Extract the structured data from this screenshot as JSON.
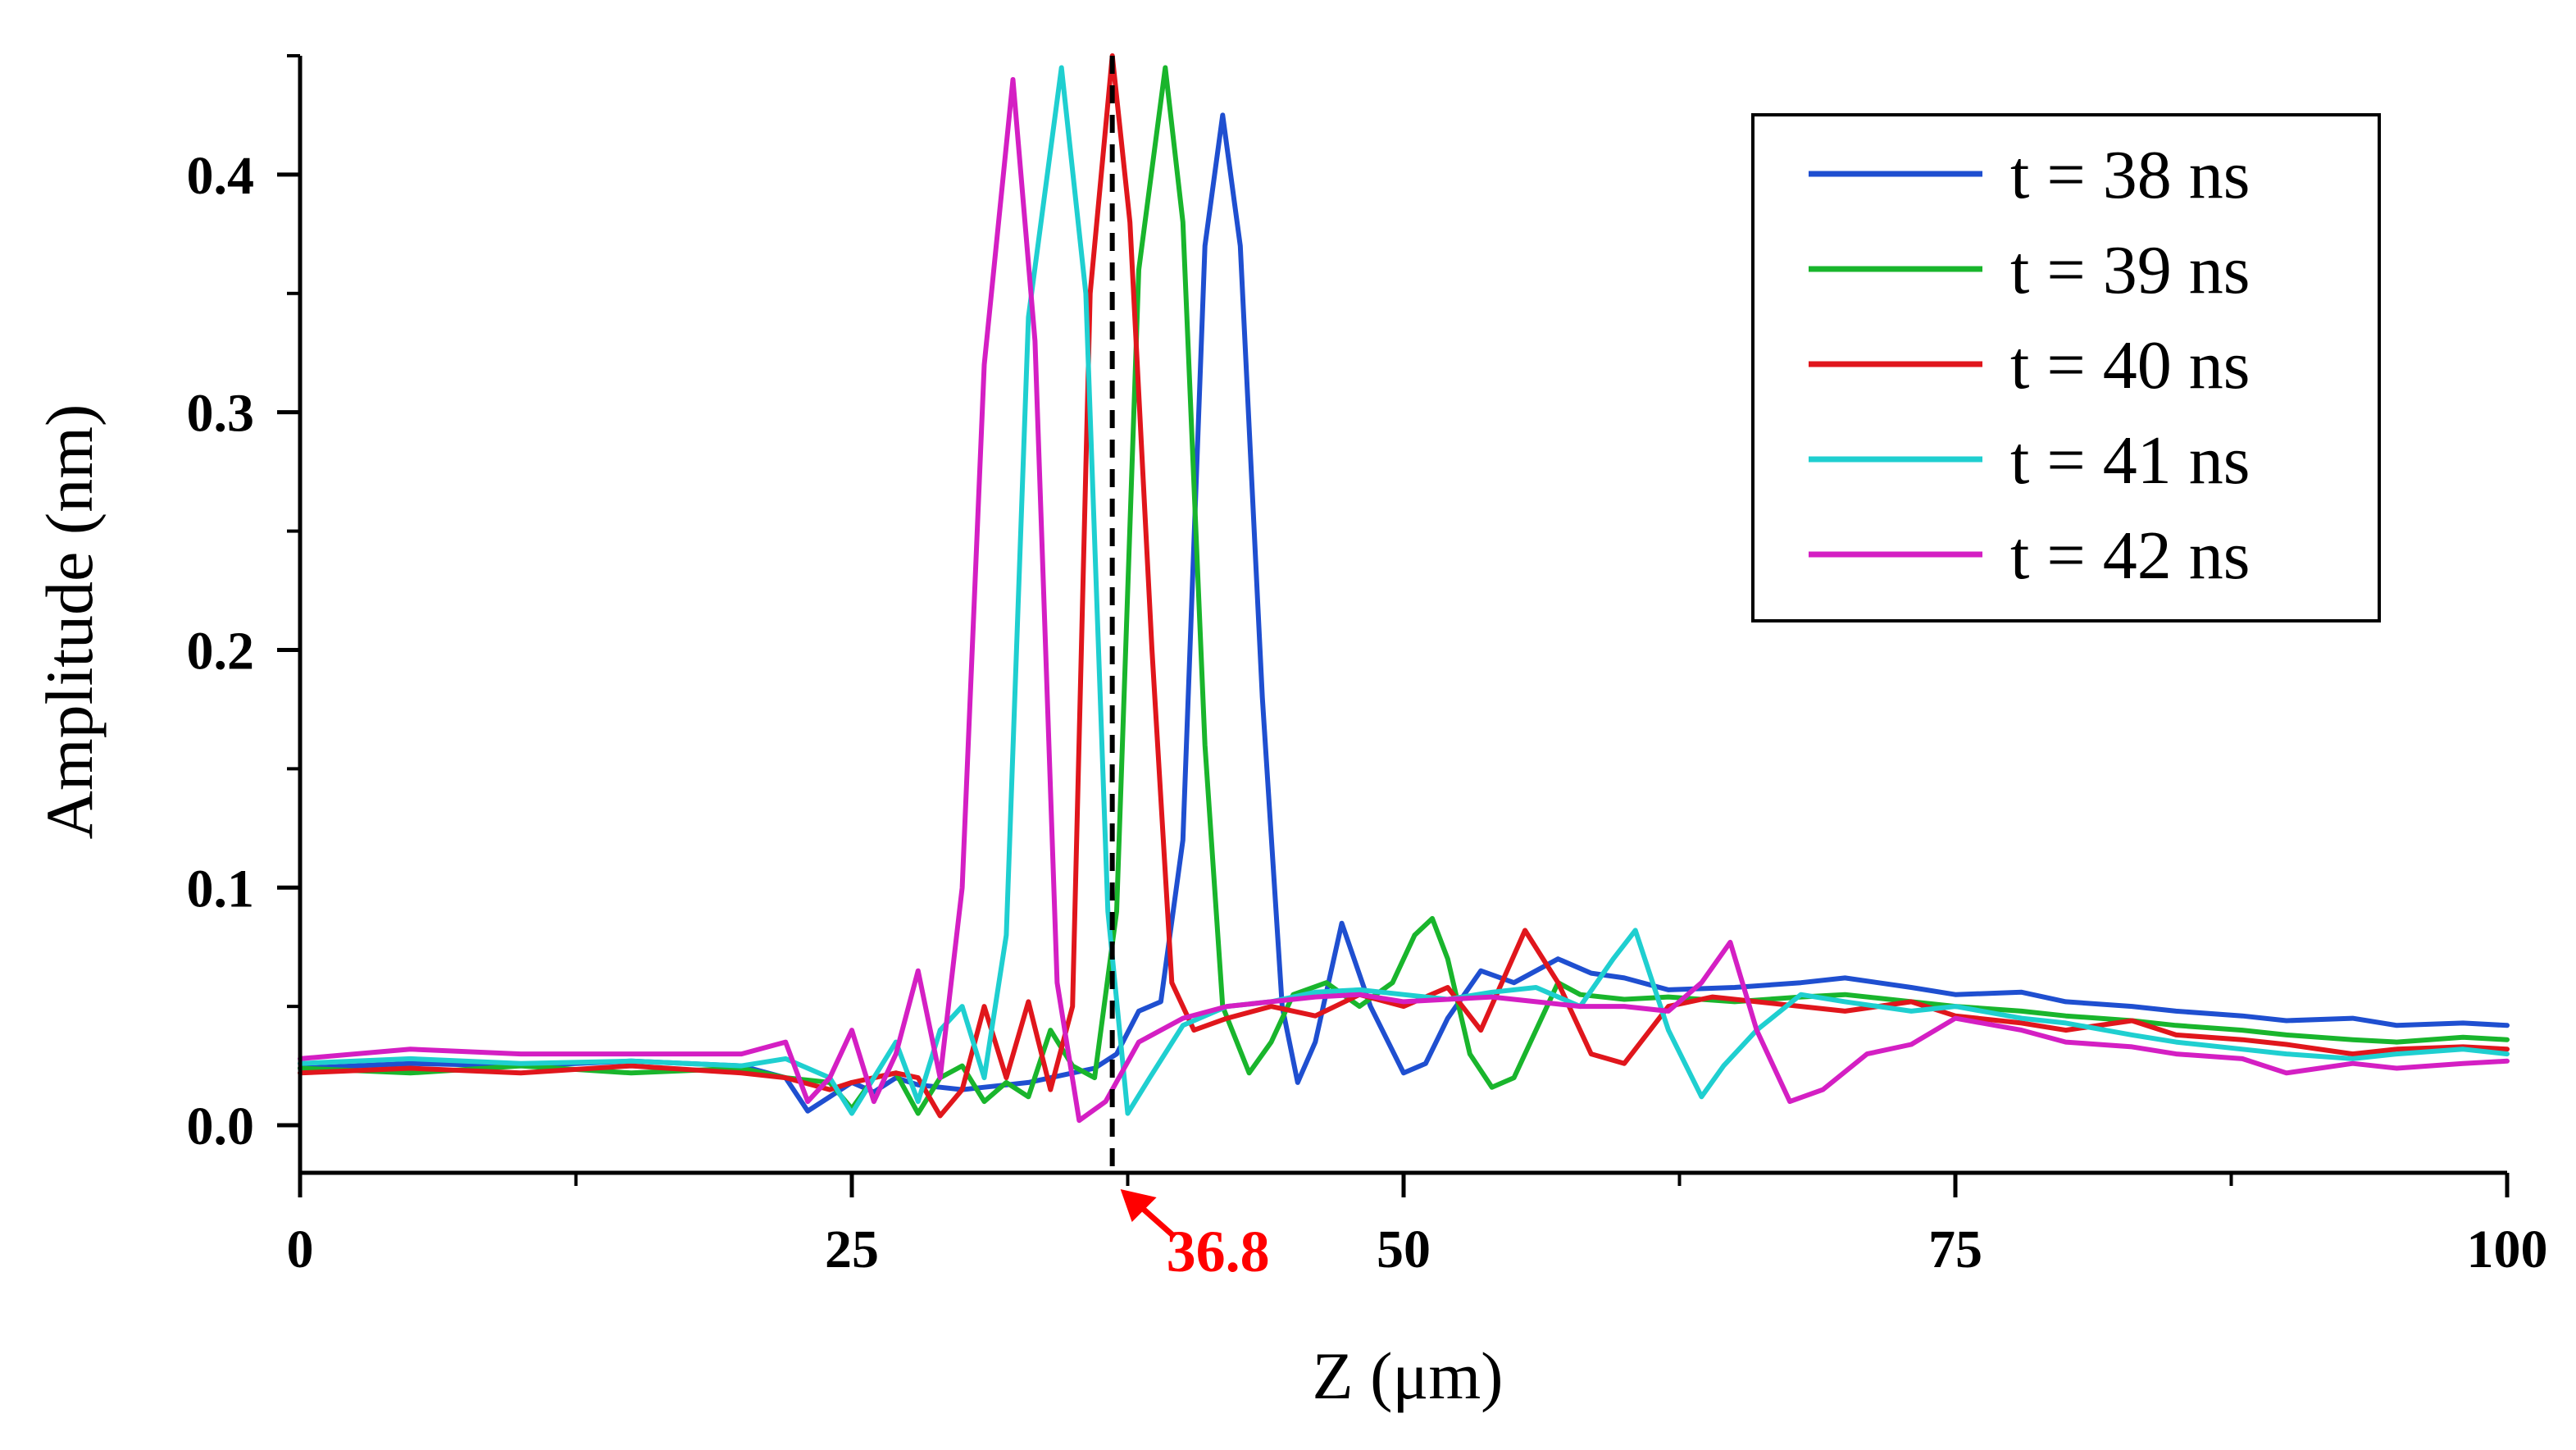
{
  "chart_data": {
    "type": "line",
    "title": "",
    "xlabel": "Z (μm)",
    "ylabel": "Amplitude (nm)",
    "xlim": [
      0,
      100
    ],
    "ylim": [
      -0.02,
      0.45
    ],
    "x_ticks": [
      0,
      25,
      50,
      75,
      100
    ],
    "x_tick_labels": [
      "0",
      "25",
      "50",
      "75",
      "100"
    ],
    "y_ticks": [
      0.0,
      0.1,
      0.2,
      0.3,
      0.4
    ],
    "y_tick_labels": [
      "0.0",
      "0.1",
      "0.2",
      "0.3",
      "0.4"
    ],
    "grid": false,
    "legend_position": "top-right",
    "series": [
      {
        "name": "t = 38 ns",
        "color": "#1f4fd0",
        "peak_center": 41.8,
        "peak_amplitude": 0.425,
        "x": [
          0,
          5,
          10,
          15,
          20,
          22,
          23,
          24,
          25,
          26,
          27,
          28,
          29,
          30,
          31,
          32,
          33,
          34,
          35,
          36,
          37,
          38,
          39,
          40,
          41,
          41.8,
          42.6,
          43.6,
          44.5,
          45.2,
          46,
          47.2,
          48.5,
          50,
          51,
          52,
          53.5,
          55,
          57,
          58.5,
          60,
          62,
          65,
          68,
          70,
          73,
          75,
          78,
          80,
          83,
          85,
          88,
          90,
          93,
          95,
          98,
          100
        ],
        "values": [
          0.024,
          0.026,
          0.025,
          0.027,
          0.025,
          0.02,
          0.006,
          0.012,
          0.018,
          0.014,
          0.02,
          0.017,
          0.016,
          0.015,
          0.016,
          0.017,
          0.018,
          0.02,
          0.022,
          0.024,
          0.03,
          0.048,
          0.052,
          0.12,
          0.37,
          0.425,
          0.37,
          0.18,
          0.05,
          0.018,
          0.035,
          0.085,
          0.05,
          0.022,
          0.026,
          0.045,
          0.065,
          0.06,
          0.07,
          0.064,
          0.062,
          0.057,
          0.058,
          0.06,
          0.062,
          0.058,
          0.055,
          0.056,
          0.052,
          0.05,
          0.048,
          0.046,
          0.044,
          0.045,
          0.042,
          0.043,
          0.042
        ]
      },
      {
        "name": "t = 39 ns",
        "color": "#19b52c",
        "peak_center": 39.2,
        "peak_amplitude": 0.445,
        "x": [
          0,
          5,
          10,
          15,
          20,
          22,
          24,
          25,
          26,
          27,
          28,
          29,
          30,
          31,
          32,
          33,
          34,
          35,
          36,
          37,
          38,
          39.2,
          40,
          41,
          41.8,
          43,
          44,
          45,
          46.5,
          48,
          49.5,
          50.5,
          51.3,
          52,
          53,
          54,
          55,
          56,
          57,
          58,
          60,
          62,
          65,
          68,
          70,
          73,
          75,
          78,
          80,
          83,
          85,
          88,
          90,
          93,
          95,
          98,
          100
        ],
        "values": [
          0.024,
          0.022,
          0.025,
          0.022,
          0.024,
          0.02,
          0.018,
          0.007,
          0.02,
          0.022,
          0.005,
          0.02,
          0.025,
          0.01,
          0.018,
          0.012,
          0.04,
          0.025,
          0.02,
          0.09,
          0.36,
          0.445,
          0.38,
          0.16,
          0.05,
          0.022,
          0.035,
          0.055,
          0.06,
          0.05,
          0.06,
          0.08,
          0.087,
          0.07,
          0.03,
          0.016,
          0.02,
          0.04,
          0.06,
          0.055,
          0.053,
          0.054,
          0.052,
          0.054,
          0.055,
          0.052,
          0.05,
          0.048,
          0.046,
          0.044,
          0.042,
          0.04,
          0.038,
          0.036,
          0.035,
          0.037,
          0.036
        ]
      },
      {
        "name": "t = 40 ns",
        "color": "#e0161c",
        "peak_center": 36.8,
        "peak_amplitude": 0.45,
        "x": [
          0,
          5,
          10,
          15,
          20,
          22,
          24,
          25,
          26,
          27,
          28,
          29,
          30,
          31,
          32,
          33,
          34,
          35,
          35.8,
          36.8,
          37.6,
          38.6,
          39.5,
          40.5,
          42,
          44,
          46,
          48,
          50,
          52,
          53.5,
          55.5,
          57,
          58.5,
          60,
          62,
          64,
          66,
          68,
          70,
          73,
          75,
          78,
          80,
          83,
          85,
          88,
          90,
          93,
          95,
          98,
          100
        ],
        "values": [
          0.022,
          0.024,
          0.022,
          0.025,
          0.022,
          0.02,
          0.015,
          0.018,
          0.02,
          0.022,
          0.02,
          0.004,
          0.015,
          0.05,
          0.02,
          0.052,
          0.015,
          0.05,
          0.35,
          0.45,
          0.38,
          0.2,
          0.06,
          0.04,
          0.045,
          0.05,
          0.046,
          0.055,
          0.05,
          0.058,
          0.04,
          0.082,
          0.06,
          0.03,
          0.026,
          0.05,
          0.054,
          0.052,
          0.05,
          0.048,
          0.052,
          0.046,
          0.043,
          0.04,
          0.044,
          0.038,
          0.036,
          0.034,
          0.03,
          0.032,
          0.033,
          0.032
        ]
      },
      {
        "name": "t = 41 ns",
        "color": "#1fcfd0",
        "peak_center": 34.5,
        "peak_amplitude": 0.445,
        "x": [
          0,
          5,
          10,
          15,
          20,
          22,
          24,
          25,
          26,
          27,
          28,
          29,
          30,
          31,
          32,
          33,
          34.5,
          35.6,
          36.6,
          37.5,
          38.5,
          40,
          42,
          44,
          46,
          48,
          50,
          52,
          54,
          56,
          58,
          59.5,
          60.5,
          62,
          63.5,
          64.5,
          66,
          68,
          70,
          73,
          75,
          78,
          80,
          83,
          85,
          88,
          90,
          93,
          95,
          98,
          100
        ],
        "values": [
          0.026,
          0.028,
          0.026,
          0.027,
          0.025,
          0.028,
          0.02,
          0.005,
          0.02,
          0.035,
          0.01,
          0.04,
          0.05,
          0.02,
          0.08,
          0.34,
          0.445,
          0.35,
          0.09,
          0.005,
          0.02,
          0.042,
          0.05,
          0.052,
          0.056,
          0.057,
          0.055,
          0.053,
          0.056,
          0.058,
          0.05,
          0.07,
          0.082,
          0.04,
          0.012,
          0.025,
          0.04,
          0.055,
          0.052,
          0.048,
          0.05,
          0.045,
          0.043,
          0.038,
          0.035,
          0.032,
          0.03,
          0.028,
          0.03,
          0.032,
          0.03
        ]
      },
      {
        "name": "t = 42 ns",
        "color": "#d41fc3",
        "peak_center": 32.3,
        "peak_amplitude": 0.44,
        "x": [
          0,
          5,
          10,
          15,
          20,
          22,
          23,
          24,
          25,
          26,
          27,
          28,
          29,
          30,
          31,
          32.3,
          33.3,
          34.3,
          35.3,
          36.5,
          38,
          40,
          42,
          44,
          46,
          48,
          50,
          52,
          54,
          56,
          58,
          60,
          62,
          63.5,
          64.8,
          66,
          67.5,
          69,
          71,
          73,
          75,
          78,
          80,
          83,
          85,
          88,
          90,
          93,
          95,
          98,
          100
        ],
        "values": [
          0.028,
          0.032,
          0.03,
          0.03,
          0.03,
          0.035,
          0.01,
          0.02,
          0.04,
          0.01,
          0.03,
          0.065,
          0.02,
          0.1,
          0.32,
          0.44,
          0.33,
          0.06,
          0.002,
          0.01,
          0.035,
          0.045,
          0.05,
          0.052,
          0.054,
          0.055,
          0.052,
          0.053,
          0.054,
          0.052,
          0.05,
          0.05,
          0.048,
          0.06,
          0.077,
          0.04,
          0.01,
          0.015,
          0.03,
          0.034,
          0.045,
          0.04,
          0.035,
          0.033,
          0.03,
          0.028,
          0.022,
          0.026,
          0.024,
          0.026,
          0.027
        ]
      }
    ],
    "annotations": [
      {
        "type": "vertical-dashed-line",
        "x": 36.8,
        "label": "36.8",
        "color": "#ff0000"
      }
    ]
  }
}
